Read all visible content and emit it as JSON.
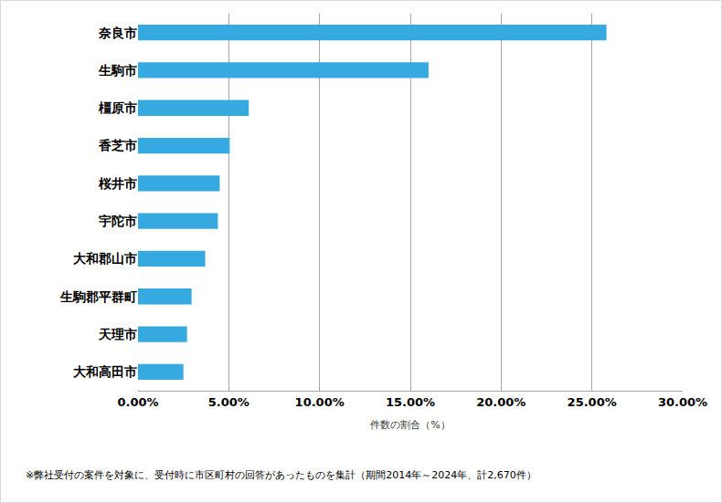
{
  "chart_data": {
    "type": "bar",
    "orientation": "horizontal",
    "categories": [
      "奈良市",
      "生駒市",
      "橿原市",
      "香芝市",
      "桜井市",
      "宇陀市",
      "大和郡山市",
      "生駒郡平群町",
      "天理市",
      "大和高田市"
    ],
    "values": [
      25.8,
      16.0,
      6.1,
      5.05,
      4.5,
      4.4,
      3.7,
      2.95,
      2.7,
      2.5
    ],
    "color": "#35a9e0",
    "xlabel": "件数の割合（%）",
    "xlim": [
      0,
      30
    ],
    "xticks": [
      {
        "value": 0,
        "label": "0.00%"
      },
      {
        "value": 5,
        "label": "5.00%"
      },
      {
        "value": 10,
        "label": "10.00%"
      },
      {
        "value": 15,
        "label": "15.00%"
      },
      {
        "value": 20,
        "label": "20.00%"
      },
      {
        "value": 25,
        "label": "25.00%"
      },
      {
        "value": 30,
        "label": "30.00%"
      }
    ],
    "grid": true,
    "annotations": [
      {
        "text": "※弊社受付の案件を対象に、受付時に市区町村の回答があったものを集計（期間2014年～2024年、計2,670件）"
      }
    ]
  }
}
